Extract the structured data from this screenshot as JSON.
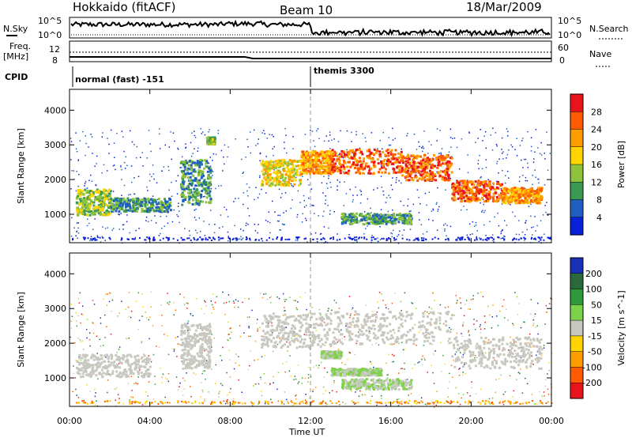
{
  "header": {
    "title": "Hokkaido (fitACF)",
    "beam": "Beam 10",
    "date": "18/Mar/2009"
  },
  "top_panels": {
    "nsky_label": "N.Sky",
    "nsky_ticks": [
      "10^5",
      "10^0"
    ],
    "nsearch_label": "N.Search",
    "nsearch_ticks": [
      "10^5",
      "10^0"
    ],
    "freq_label": "Freq.",
    "freq_unit": "[MHz]",
    "freq_ticks": [
      "12",
      "8"
    ],
    "nave_label": "Nave",
    "nave_ticks": [
      "60",
      "0"
    ],
    "cpid_label": "CPID",
    "cpid_segments": [
      {
        "start_hour": 0,
        "label": "normal (fast) -151"
      },
      {
        "start_hour": 12,
        "label": "themis 3300"
      }
    ]
  },
  "chart_data": [
    {
      "type": "heatmap",
      "name": "power",
      "ylabel": "Slant Range [km]",
      "xlabel": "Time UT",
      "x_ticks": [
        "00:00",
        "04:00",
        "08:00",
        "12:00",
        "16:00",
        "20:00",
        "00:00"
      ],
      "xlim_hours": [
        0,
        24
      ],
      "y_ticks": [
        1000,
        2000,
        3000,
        4000
      ],
      "ylim": [
        180,
        4600
      ],
      "colorbar_label": "Power [dB]",
      "colorbar_ticks": [
        "28",
        "24",
        "20",
        "16",
        "12",
        "8",
        "4"
      ],
      "colorbar_colors": [
        "#e8141b",
        "#ff5a00",
        "#ff9d00",
        "#ffd400",
        "#8fc33e",
        "#3a9a52",
        "#1f5fbf",
        "#0a1fd8"
      ],
      "regions": [
        {
          "t": [
            0.3,
            2.0
          ],
          "r": [
            1000,
            1750
          ],
          "level": 3
        },
        {
          "t": [
            2.0,
            5.0
          ],
          "r": [
            1100,
            1500
          ],
          "level": 2
        },
        {
          "t": [
            5.5,
            7.0
          ],
          "r": [
            1300,
            2600
          ],
          "level": 2
        },
        {
          "t": [
            6.8,
            7.2
          ],
          "r": [
            3050,
            3250
          ],
          "level": 3
        },
        {
          "t": [
            9.5,
            11.5
          ],
          "r": [
            1850,
            2600
          ],
          "level": 4
        },
        {
          "t": [
            11.5,
            13.0
          ],
          "r": [
            2200,
            2850
          ],
          "level": 5
        },
        {
          "t": [
            13.0,
            16.5
          ],
          "r": [
            2200,
            2900
          ],
          "level": 6
        },
        {
          "t": [
            16.5,
            19.0
          ],
          "r": [
            2000,
            2750
          ],
          "level": 6
        },
        {
          "t": [
            19.0,
            21.5
          ],
          "r": [
            1400,
            2000
          ],
          "level": 6
        },
        {
          "t": [
            21.5,
            23.5
          ],
          "r": [
            1350,
            1800
          ],
          "level": 5
        },
        {
          "t": [
            13.5,
            17.0
          ],
          "r": [
            750,
            1050
          ],
          "level": 2
        }
      ]
    },
    {
      "type": "heatmap",
      "name": "velocity",
      "ylabel": "Slant Range [km]",
      "xlabel": "Time UT",
      "x_ticks": [
        "00:00",
        "04:00",
        "08:00",
        "12:00",
        "16:00",
        "20:00",
        "00:00"
      ],
      "xlim_hours": [
        0,
        24
      ],
      "y_ticks": [
        1000,
        2000,
        3000,
        4000
      ],
      "ylim": [
        180,
        4600
      ],
      "colorbar_label": "Velocity [m s^-1]",
      "colorbar_ticks": [
        "200",
        "100",
        "50",
        "15",
        "-15",
        "-50",
        "-100",
        "-200"
      ],
      "colorbar_colors": [
        "#1a2fb8",
        "#2a6a3a",
        "#2f9a3a",
        "#7ed24a",
        "#c8c8c0",
        "#ffd400",
        "#ff9d00",
        "#ff5a00",
        "#e8141b"
      ],
      "regions": [
        {
          "t": [
            0.3,
            4.0
          ],
          "r": [
            1050,
            1700
          ],
          "level": 4
        },
        {
          "t": [
            5.5,
            7.0
          ],
          "r": [
            1300,
            2600
          ],
          "level": 4
        },
        {
          "t": [
            9.5,
            13.0
          ],
          "r": [
            1900,
            2900
          ],
          "level": 4
        },
        {
          "t": [
            13.0,
            19.0
          ],
          "r": [
            2000,
            2950
          ],
          "level": 4
        },
        {
          "t": [
            19.0,
            23.5
          ],
          "r": [
            1300,
            2200
          ],
          "level": 4
        },
        {
          "t": [
            13.0,
            15.5
          ],
          "r": [
            1100,
            1300
          ],
          "level": 3
        },
        {
          "t": [
            13.5,
            17.0
          ],
          "r": [
            700,
            1000
          ],
          "level": 3
        },
        {
          "t": [
            12.5,
            13.5
          ],
          "r": [
            1600,
            1800
          ],
          "level": 3
        }
      ]
    }
  ],
  "footer": {
    "x_axis_title": "Time UT"
  }
}
